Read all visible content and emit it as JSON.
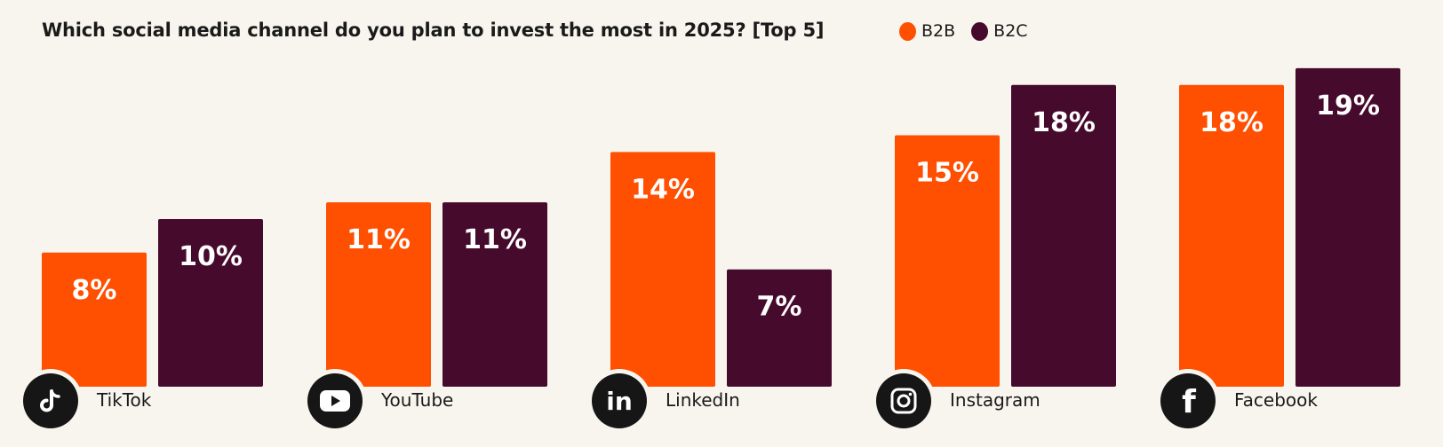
{
  "chart_data": {
    "type": "bar",
    "title": "Which social media channel do you plan to invest the most in 2025? [Top 5]",
    "xlabel": "",
    "ylabel": "",
    "ylim": [
      0,
      20
    ],
    "grid": false,
    "legend_position": "top-right",
    "categories": [
      "TikTok",
      "YouTube",
      "LinkedIn",
      "Instagram",
      "Facebook"
    ],
    "category_icons": [
      "tiktok-icon",
      "youtube-icon",
      "linkedin-icon",
      "instagram-icon",
      "facebook-icon"
    ],
    "series": [
      {
        "name": "B2B",
        "color": "#ff4f00",
        "values": [
          8,
          11,
          14,
          15,
          18
        ],
        "labels": [
          "8%",
          "11%",
          "14%",
          "15%",
          "18%"
        ]
      },
      {
        "name": "B2C",
        "color": "#460a2d",
        "values": [
          10,
          11,
          7,
          18,
          19
        ],
        "labels": [
          "10%",
          "11%",
          "7%",
          "18%",
          "19%"
        ]
      }
    ]
  },
  "colors": {
    "background": "#f8f5ee",
    "icon_bg": "#161616",
    "text": "#1a1a1a"
  }
}
